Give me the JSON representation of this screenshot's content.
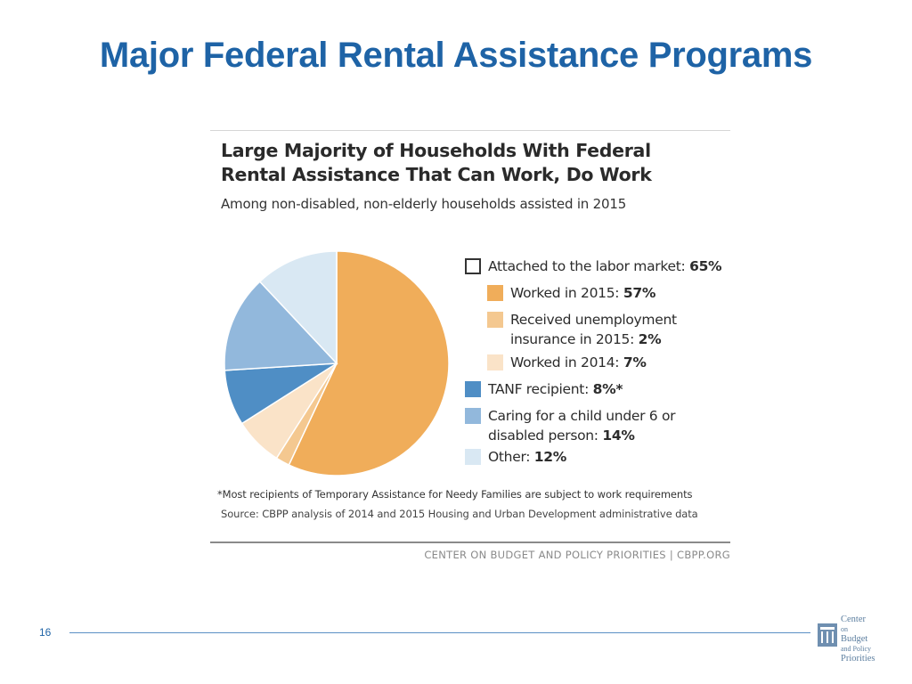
{
  "slide": {
    "title": "Major Federal Rental Assistance Programs",
    "page_number": "16"
  },
  "logo": {
    "lines": [
      "Center",
      "on",
      "Budget",
      "and Policy",
      "Priorities"
    ]
  },
  "figure": {
    "title_line1": "Large Majority of Households With Federal",
    "title_line2": "Rental Assistance That Can Work, Do Work",
    "subtitle": "Among non-disabled, non-elderly households assisted in 2015",
    "footnote": "*Most recipients of Temporary Assistance for Needy Families are subject to work requirements",
    "source": "Source: CBPP analysis of 2014 and 2015 Housing and Urban Development administrative data",
    "credit": "CENTER ON BUDGET AND POLICY PRIORITIES | CBPP.ORG"
  },
  "legend": [
    {
      "label": "Attached to the labor market: ",
      "value": "65%",
      "color": "#ffffff",
      "border": "#333333",
      "indent": false
    },
    {
      "label": "Worked in 2015: ",
      "value": "57%",
      "color": "#f0ad5a",
      "indent": true
    },
    {
      "label_line1": "Received unemployment",
      "label": "insurance in 2015: ",
      "value": "2%",
      "color": "#f4c890",
      "indent": true
    },
    {
      "label": "Worked in 2014: ",
      "value": "7%",
      "color": "#fae3c8",
      "indent": true
    },
    {
      "label": "TANF recipient: ",
      "value": "8%*",
      "color": "#4f8ec5",
      "indent": false
    },
    {
      "label_line1": "Caring for a child under 6 or",
      "label": "disabled person: ",
      "value": "14%",
      "color": "#92b8dc",
      "indent": false
    },
    {
      "label": "Other: ",
      "value": "12%",
      "color": "#d9e8f3",
      "indent": false
    }
  ],
  "chart_data": {
    "type": "pie",
    "title": "Large Majority of Households With Federal Rental Assistance That Can Work, Do Work",
    "subtitle": "Among non-disabled, non-elderly households assisted in 2015",
    "slices": [
      {
        "label": "Worked in 2015",
        "value": 57,
        "color": "#f0ad5a"
      },
      {
        "label": "Received unemployment insurance in 2015",
        "value": 2,
        "color": "#f4c890"
      },
      {
        "label": "Worked in 2014",
        "value": 7,
        "color": "#fae3c8"
      },
      {
        "label": "TANF recipient",
        "value": 8,
        "color": "#4f8ec5"
      },
      {
        "label": "Caring for a child under 6 or disabled person",
        "value": 14,
        "color": "#92b8dc"
      },
      {
        "label": "Other",
        "value": 12,
        "color": "#d9e8f3"
      }
    ],
    "groups": [
      {
        "label": "Attached to the labor market",
        "value": 65
      }
    ],
    "legend_position": "right"
  }
}
